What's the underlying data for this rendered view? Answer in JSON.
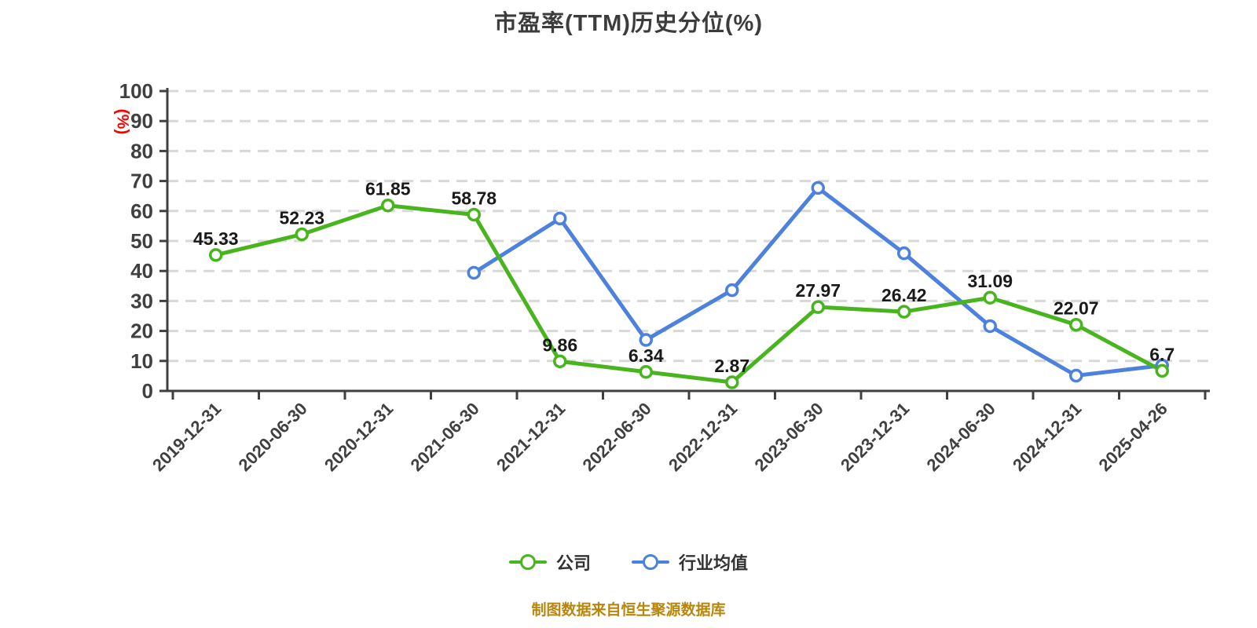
{
  "chart_data": {
    "type": "line",
    "title": "市盈率(TTM)历史分位(%)",
    "xlabel": "",
    "ylabel": "(%)",
    "ylim": [
      0,
      100
    ],
    "yticks": [
      0,
      10,
      20,
      30,
      40,
      50,
      60,
      70,
      80,
      90,
      100
    ],
    "grid": "horizontal-dashed",
    "legend_position": "bottom",
    "categories": [
      "2019-12-31",
      "2020-06-30",
      "2020-12-31",
      "2021-06-30",
      "2021-12-31",
      "2022-06-30",
      "2022-12-31",
      "2023-06-30",
      "2023-12-31",
      "2024-06-30",
      "2024-12-31",
      "2025-04-26"
    ],
    "series": [
      {
        "name": "公司",
        "color": "#48B41E",
        "show_point_labels": true,
        "values": [
          45.33,
          52.23,
          61.85,
          58.78,
          9.86,
          6.34,
          2.87,
          27.97,
          26.42,
          31.09,
          22.07,
          6.7
        ]
      },
      {
        "name": "行业均值",
        "color": "#4C82DE",
        "show_point_labels": false,
        "values": [
          null,
          null,
          null,
          39.4,
          57.5,
          17.0,
          33.6,
          67.7,
          45.9,
          21.6,
          5.1,
          8.5
        ]
      }
    ]
  },
  "source_note": "制图数据来自恒生聚源数据库",
  "colors": {
    "background": "#FFFFFF",
    "grid": "#D8D8D8",
    "axis": "#404040",
    "tick_label": "#404040",
    "value_label": "#1A1A1A",
    "title": "#3C3C3C",
    "ylabel": "#FF0000",
    "source": "#B8860B",
    "legend_text": "#333333",
    "marker_fill": "#FFFFFF"
  }
}
